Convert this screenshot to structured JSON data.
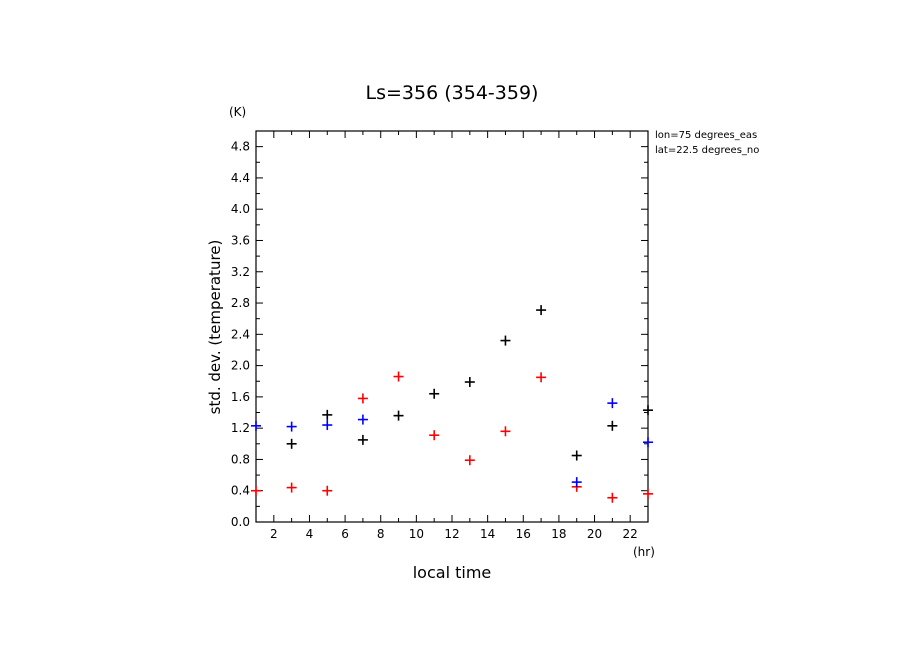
{
  "chart_data": {
    "type": "scatter",
    "title": "Ls=356 (354-359)",
    "xlabel": "local time",
    "xunit": "(hr)",
    "ylabel": "std. dev. (temperature)",
    "yunit": "(K)",
    "annotations": [
      "lon=75 degrees_eas",
      "lat=22.5 degrees_no"
    ],
    "xlim": [
      1,
      23
    ],
    "ylim": [
      0.0,
      5.0
    ],
    "xticks": [
      2,
      4,
      6,
      8,
      10,
      12,
      14,
      16,
      18,
      20,
      22
    ],
    "yticks": [
      "0.0",
      "0.4",
      "0.8",
      "1.2",
      "1.6",
      "2.0",
      "2.4",
      "2.8",
      "3.2",
      "3.6",
      "4.0",
      "4.4",
      "4.8"
    ],
    "grid": false,
    "colors": {
      "black": "#000000",
      "red": "#ff0000",
      "blue": "#0000ff"
    },
    "series": [
      {
        "color": "#000000",
        "points": [
          [
            3,
            1.0
          ],
          [
            5,
            1.37
          ],
          [
            7,
            1.05
          ],
          [
            9,
            1.36
          ],
          [
            11,
            1.64
          ],
          [
            13,
            1.79
          ],
          [
            15,
            2.32
          ],
          [
            17,
            2.71
          ],
          [
            19,
            0.85
          ],
          [
            21,
            1.23
          ],
          [
            23,
            1.43
          ]
        ]
      },
      {
        "color": "#ff0000",
        "points": [
          [
            1,
            0.4
          ],
          [
            3,
            0.44
          ],
          [
            5,
            0.4
          ],
          [
            7,
            1.58
          ],
          [
            9,
            1.86
          ],
          [
            11,
            1.11
          ],
          [
            13,
            0.79
          ],
          [
            15,
            1.16
          ],
          [
            17,
            1.85
          ],
          [
            19,
            0.45
          ],
          [
            21,
            0.31
          ],
          [
            23,
            0.36
          ]
        ]
      },
      {
        "color": "#0000ff",
        "points": [
          [
            1,
            1.23
          ],
          [
            3,
            1.22
          ],
          [
            5,
            1.24
          ],
          [
            7,
            1.31
          ],
          [
            19,
            0.51
          ],
          [
            21,
            1.52
          ],
          [
            23,
            1.02
          ]
        ]
      }
    ]
  }
}
